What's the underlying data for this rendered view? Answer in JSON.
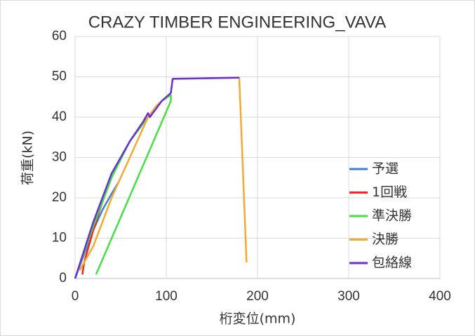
{
  "chart_data": {
    "type": "line",
    "title": "CRAZY TIMBER ENGINEERING_VAVA",
    "x_label": "桁変位(mm)",
    "y_label": "荷重(kN)",
    "xlim": [
      0,
      400
    ],
    "xticks": [
      0,
      100,
      200,
      300,
      400
    ],
    "ylim": [
      0,
      60
    ],
    "yticks": [
      0,
      10,
      20,
      30,
      40,
      50,
      60
    ],
    "grid": true,
    "legend": "right",
    "series": [
      {
        "name": "予選",
        "color": "#3f7fd6",
        "x": [
          0,
          10,
          20,
          30,
          40,
          48
        ],
        "values": [
          0,
          6,
          12,
          17,
          21,
          24
        ]
      },
      {
        "name": "1回戦",
        "color": "#ff2222",
        "x": [
          8,
          10,
          15,
          20,
          30,
          40
        ],
        "values": [
          1,
          4,
          8,
          12,
          19,
          25
        ]
      },
      {
        "name": "準決勝",
        "color": "#44e044",
        "x": [
          0,
          20,
          40,
          60,
          80,
          95,
          105,
          105,
          23
        ],
        "values": [
          0,
          13,
          25,
          34,
          40,
          44,
          45.5,
          44,
          1
        ]
      },
      {
        "name": "決勝",
        "color": "#f5a832",
        "x": [
          5,
          20,
          40,
          60,
          80,
          90,
          105,
          107,
          180,
          188
        ],
        "values": [
          2,
          8,
          20,
          30,
          40,
          43,
          46,
          49.5,
          49.8,
          4
        ]
      },
      {
        "name": "包絡線",
        "color": "#6a2fd6",
        "x": [
          0,
          20,
          40,
          60,
          75,
          80,
          82,
          95,
          105,
          107,
          180
        ],
        "values": [
          0,
          14,
          26,
          34,
          39,
          41,
          40,
          44,
          46,
          49.5,
          49.8
        ]
      }
    ]
  }
}
